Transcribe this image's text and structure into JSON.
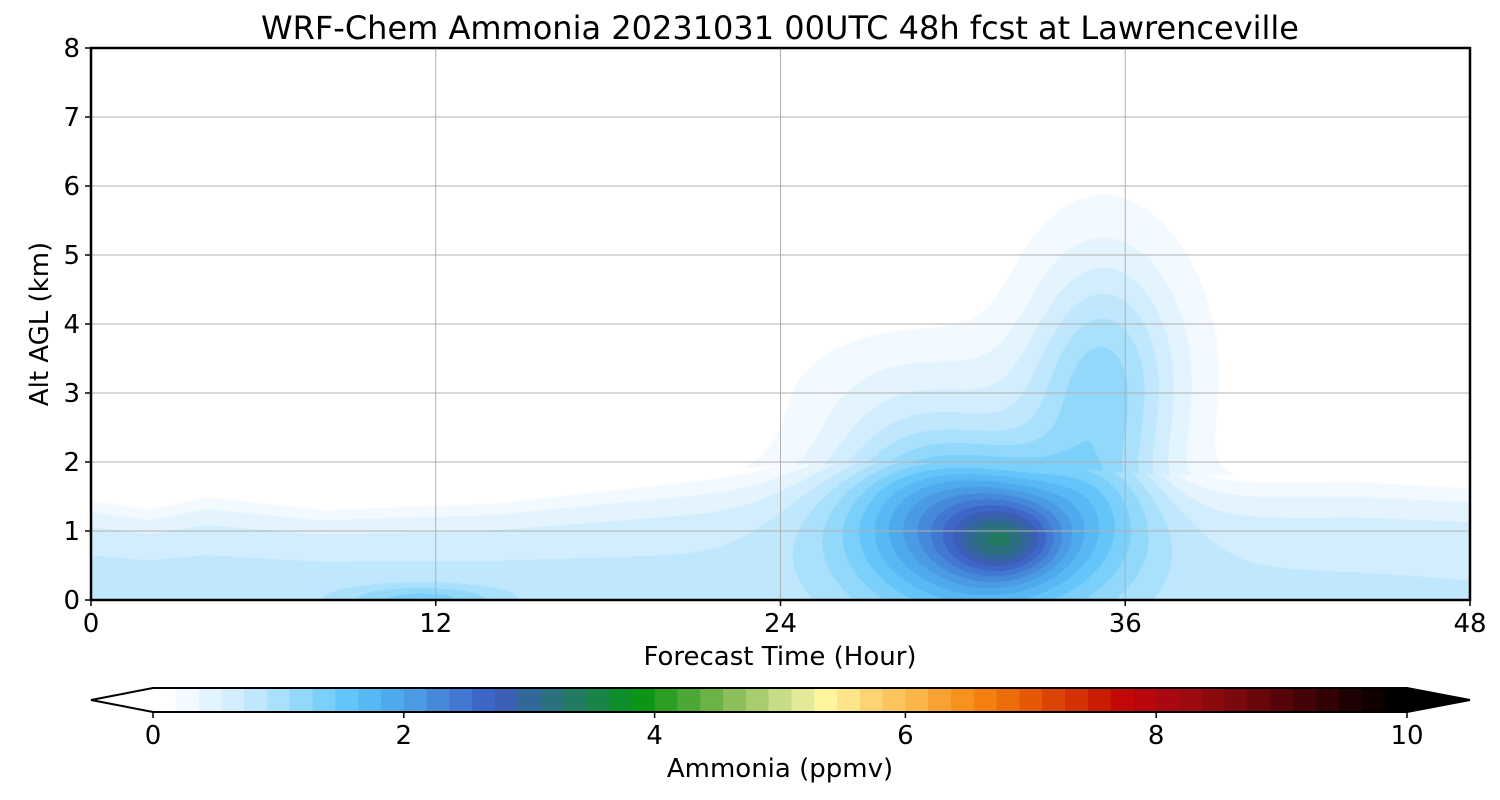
{
  "chart_data": {
    "type": "heatmap",
    "title": "WRF-Chem Ammonia  20231031 00UTC 48h fcst at Lawrenceville",
    "xlabel": "Forecast Time (Hour)",
    "ylabel": "Alt AGL (km)",
    "xlim": [
      0,
      48
    ],
    "ylim": [
      0,
      8
    ],
    "x_ticks": [
      "0",
      "12",
      "24",
      "36",
      "48"
    ],
    "y_ticks": [
      "0",
      "1",
      "2",
      "3",
      "4",
      "5",
      "6",
      "7",
      "8"
    ],
    "grid": true,
    "colorbar": {
      "label": "Ammonia  (ppmv)",
      "range": [
        0,
        10
      ],
      "ticks": [
        "0",
        "2",
        "4",
        "6",
        "8",
        "10"
      ],
      "extend": "both",
      "placement": "bottom",
      "colors": [
        "#ffffff",
        "#f2f9ff",
        "#e4f4ff",
        "#d2eefe",
        "#bfe7fd",
        "#a9e0fc",
        "#92d8fb",
        "#7acffb",
        "#63c5fa",
        "#58b8f4",
        "#4eaaec",
        "#4a9be3",
        "#4689db",
        "#4278d2",
        "#3e66c8",
        "#3a5fb3",
        "#32679a",
        "#2a707e",
        "#227a62",
        "#1a8446",
        "#0e8e2a",
        "#0a9514",
        "#2c9e22",
        "#4ca834",
        "#6cb346",
        "#8cbf5a",
        "#a8cc6e",
        "#c6dc86",
        "#e2ea9a",
        "#fdf69e",
        "#fee48a",
        "#fdd474",
        "#fcc45e",
        "#fbb448",
        "#f9a232",
        "#f7921e",
        "#f3800e",
        "#ec6c0a",
        "#e45806",
        "#dc4404",
        "#d43002",
        "#cc1c00",
        "#c40806",
        "#b8060c",
        "#aa0810",
        "#9c0a10",
        "#8c0a0e",
        "#7a080c",
        "#68060a",
        "#560408",
        "#440306",
        "#320204",
        "#200102",
        "#100000",
        "#000000"
      ]
    },
    "field": {
      "background": 0.03,
      "surface_layer": {
        "value_start": 0.75,
        "value_end": 0.7,
        "depth_km_by_hour": [
          [
            0,
            1.55
          ],
          [
            2,
            1.4
          ],
          [
            4,
            1.6
          ],
          [
            8,
            1.4
          ],
          [
            14,
            1.5
          ],
          [
            20,
            1.8
          ],
          [
            24,
            1.95
          ],
          [
            28,
            2.0
          ],
          [
            34,
            1.9
          ],
          [
            38,
            1.8
          ],
          [
            44,
            1.85
          ],
          [
            48,
            1.75
          ]
        ]
      },
      "features": [
        {
          "hour": 11.5,
          "alt_km": 0.0,
          "hour_spread": 2.0,
          "alt_spread": 0.15,
          "value": 0.6
        },
        {
          "hour": 28.5,
          "alt_km": 1.5,
          "hour_spread": 2.5,
          "alt_spread": 1.1,
          "value": 0.8
        },
        {
          "hour": 31.5,
          "alt_km": 1.0,
          "hour_spread": 2.5,
          "alt_spread": 0.9,
          "value": 1.4
        },
        {
          "hour": 31.8,
          "alt_km": 0.85,
          "hour_spread": 1.2,
          "alt_spread": 0.35,
          "value": 0.9
        },
        {
          "hour": 35.2,
          "alt_km": 2.8,
          "hour_spread": 1.8,
          "alt_spread": 1.5,
          "value": 0.9
        },
        {
          "hour": 35.5,
          "alt_km": 3.6,
          "hour_spread": 2.5,
          "alt_spread": 1.2,
          "value": 0.25
        },
        {
          "hour": 29.5,
          "alt_km": 3.2,
          "hour_spread": 4.0,
          "alt_spread": 0.6,
          "value": 0.15
        }
      ]
    }
  }
}
